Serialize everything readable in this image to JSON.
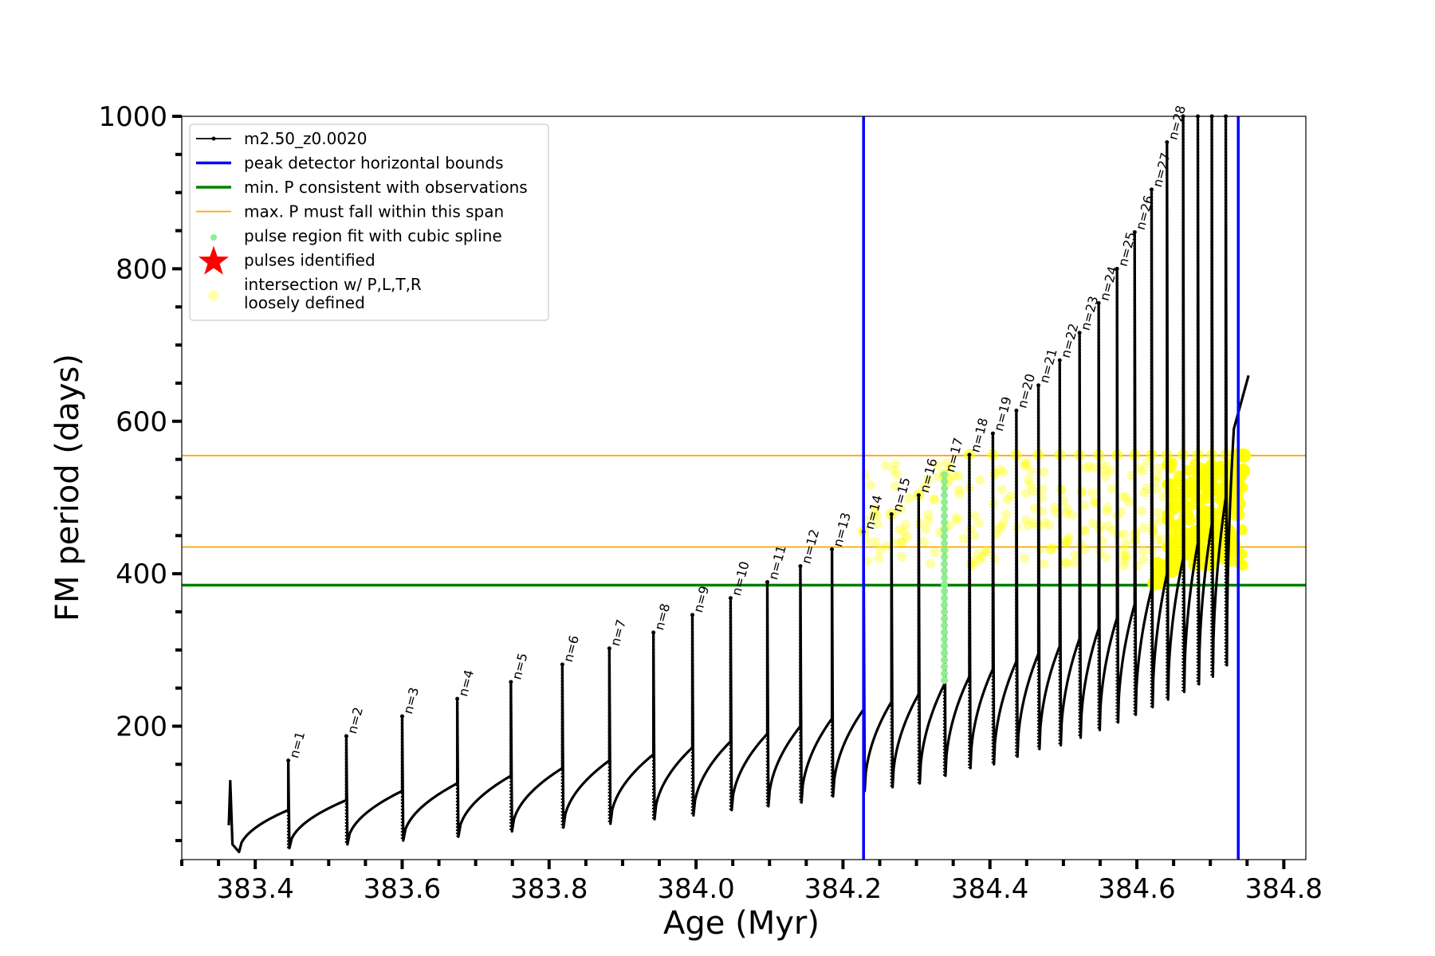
{
  "chart_data": {
    "type": "line",
    "title": "",
    "xlabel": "Age (Myr)",
    "ylabel": "FM period (days)",
    "xlim": [
      383.3,
      384.83
    ],
    "ylim": [
      25,
      1000
    ],
    "xticks": [
      "383.4",
      "383.6",
      "383.8",
      "384.0",
      "384.2",
      "384.4",
      "384.6",
      "384.8"
    ],
    "xtick_values": [
      383.4,
      383.6,
      383.8,
      384.0,
      384.2,
      384.4,
      384.6,
      384.8
    ],
    "yticks": [
      "200",
      "400",
      "600",
      "800",
      "1000"
    ],
    "ytick_values": [
      200,
      400,
      600,
      800,
      1000
    ],
    "y_minor_step": 50,
    "x_minor_step": 0.05,
    "legend_position": "upper-left",
    "legend": [
      {
        "label": "m2.50_z0.0020",
        "kind": "line-marker",
        "color": "#000000"
      },
      {
        "label": "peak detector horizontal bounds",
        "kind": "line",
        "color": "#0000ff"
      },
      {
        "label": "min. P consistent with observations",
        "kind": "line",
        "color": "#008000"
      },
      {
        "label": "max. P must fall within this span",
        "kind": "thin-line",
        "color": "#ffa500"
      },
      {
        "label": "pulse region fit with cubic spline",
        "kind": "dot",
        "color": "#90ee90"
      },
      {
        "label": "pulses identified",
        "kind": "star",
        "color": "#ff0000"
      },
      {
        "label": "intersection w/ P,L,T,R\nloosely defined",
        "kind": "circle",
        "color": "#ffffb3"
      }
    ],
    "vertical_lines": [
      {
        "name": "peak detector horizontal bounds",
        "x": 384.228,
        "color": "#0000ff"
      },
      {
        "name": "peak detector horizontal bounds",
        "x": 384.738,
        "color": "#0000ff"
      }
    ],
    "horizontal_lines": [
      {
        "name": "min. P consistent with observations",
        "y": 385,
        "color": "#008000"
      },
      {
        "name": "max. P must fall within this span",
        "y": 435,
        "color": "#ffa500"
      },
      {
        "name": "max. P must fall within this span",
        "y": 555,
        "color": "#ffa500"
      }
    ],
    "series": [
      {
        "name": "m2.50_z0.0020",
        "color": "#000000",
        "pulses": [
          {
            "label": "n=1",
            "age": 383.445,
            "peak": 155,
            "floor": 40,
            "pre": 90
          },
          {
            "label": "n=2",
            "age": 383.524,
            "peak": 187,
            "floor": 45,
            "pre": 103
          },
          {
            "label": "n=3",
            "age": 383.6,
            "peak": 213,
            "floor": 50,
            "pre": 115
          },
          {
            "label": "n=4",
            "age": 383.675,
            "peak": 236,
            "floor": 55,
            "pre": 125
          },
          {
            "label": "n=5",
            "age": 383.748,
            "peak": 258,
            "floor": 62,
            "pre": 135
          },
          {
            "label": "n=6",
            "age": 383.818,
            "peak": 281,
            "floor": 67,
            "pre": 145
          },
          {
            "label": "n=7",
            "age": 383.882,
            "peak": 302,
            "floor": 72,
            "pre": 155
          },
          {
            "label": "n=8",
            "age": 383.942,
            "peak": 323,
            "floor": 78,
            "pre": 163
          },
          {
            "label": "n=9",
            "age": 383.995,
            "peak": 346,
            "floor": 83,
            "pre": 172
          },
          {
            "label": "n=10",
            "age": 384.047,
            "peak": 368,
            "floor": 90,
            "pre": 180
          },
          {
            "label": "n=11",
            "age": 384.097,
            "peak": 389,
            "floor": 95,
            "pre": 190
          },
          {
            "label": "n=12",
            "age": 384.142,
            "peak": 410,
            "floor": 100,
            "pre": 200
          },
          {
            "label": "n=13",
            "age": 384.185,
            "peak": 432,
            "floor": 108,
            "pre": 210
          },
          {
            "label": "n=14",
            "age": 384.228,
            "peak": 455,
            "floor": 115,
            "pre": 222
          },
          {
            "label": "n=15",
            "age": 384.266,
            "peak": 478,
            "floor": 120,
            "pre": 232
          },
          {
            "label": "n=16",
            "age": 384.303,
            "peak": 503,
            "floor": 125,
            "pre": 242
          },
          {
            "label": "n=17",
            "age": 384.338,
            "peak": 530,
            "floor": 135,
            "pre": 255
          },
          {
            "label": "n=18",
            "age": 384.372,
            "peak": 556,
            "floor": 145,
            "pre": 265
          },
          {
            "label": "n=19",
            "age": 384.404,
            "peak": 584,
            "floor": 150,
            "pre": 275
          },
          {
            "label": "n=20",
            "age": 384.436,
            "peak": 614,
            "floor": 160,
            "pre": 285
          },
          {
            "label": "n=21",
            "age": 384.466,
            "peak": 647,
            "floor": 170,
            "pre": 295
          },
          {
            "label": "n=22",
            "age": 384.495,
            "peak": 680,
            "floor": 175,
            "pre": 305
          },
          {
            "label": "n=23",
            "age": 384.522,
            "peak": 716,
            "floor": 185,
            "pre": 315
          },
          {
            "label": "n=24",
            "age": 384.548,
            "peak": 755,
            "floor": 195,
            "pre": 328
          },
          {
            "label": "n=25",
            "age": 384.573,
            "peak": 800,
            "floor": 205,
            "pre": 342
          },
          {
            "label": "n=26",
            "age": 384.597,
            "peak": 848,
            "floor": 215,
            "pre": 360
          },
          {
            "label": "n=27",
            "age": 384.62,
            "peak": 904,
            "floor": 225,
            "pre": 380
          },
          {
            "label": "n=28",
            "age": 384.641,
            "peak": 966,
            "floor": 235,
            "pre": 400
          },
          {
            "label": "",
            "age": 384.663,
            "peak": 1000,
            "floor": 245,
            "pre": 420
          },
          {
            "label": "",
            "age": 384.683,
            "peak": 1000,
            "floor": 255,
            "pre": 440
          },
          {
            "label": "",
            "age": 384.702,
            "peak": 1000,
            "floor": 265,
            "pre": 465
          },
          {
            "label": "",
            "age": 384.721,
            "peak": 1000,
            "floor": 280,
            "pre": 500
          }
        ],
        "start": {
          "age": 383.366,
          "peak": 128,
          "floor": 35
        },
        "tail": {
          "age_start": 384.732,
          "age_end": 384.752,
          "from": 590,
          "to": 660
        }
      }
    ],
    "spline_fit_region": {
      "age": 384.338,
      "from": 260,
      "to": 530,
      "color": "#90ee90"
    },
    "intersection_region": {
      "color": "#ffff00",
      "age_from": 384.225,
      "age_to": 384.745,
      "p_from": 390,
      "p_to": 556,
      "dense_from_age": 384.625
    }
  }
}
